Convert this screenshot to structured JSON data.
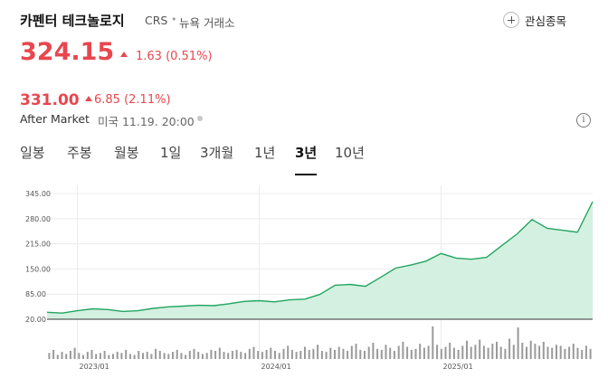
{
  "header": {
    "company_name": "카펜터 테크놀로지",
    "ticker": "CRS",
    "separator": "•",
    "exchange": "뉴욕 거래소",
    "watchlist_label": "관심종목"
  },
  "quote": {
    "price": "324.15",
    "change": "1.63 (0.51%)",
    "direction": "up",
    "color": "#e8474f"
  },
  "after_market": {
    "price": "331.00",
    "change": "6.85 (2.11%)",
    "label": "After Market",
    "time": "미국 11.19. 20:00",
    "info_icon": "i"
  },
  "tabs": [
    {
      "label": "일봉",
      "active": false
    },
    {
      "label": "주봉",
      "active": false
    },
    {
      "label": "월봉",
      "active": false
    },
    {
      "label": "1일",
      "active": false
    },
    {
      "label": "3개월",
      "active": false
    },
    {
      "label": "1년",
      "active": false
    },
    {
      "label": "3년",
      "active": true
    },
    {
      "label": "10년",
      "active": false
    }
  ],
  "chart_data": {
    "type": "area",
    "line_color": "#22a562",
    "fill_color": "#d4f0e0",
    "yticks": [
      "345.00",
      "280.00",
      "215.00",
      "150.00",
      "85.00",
      "20.00"
    ],
    "ytick_values": [
      345,
      280,
      215,
      150,
      85,
      20
    ],
    "ylim": [
      20,
      345
    ],
    "xticks": [
      "2023/01",
      "2024/01",
      "2025/01"
    ],
    "xtick_values": [
      "2023-01",
      "2024-01",
      "2025-01"
    ],
    "x_range": [
      "2022-11",
      "2025-11"
    ],
    "grid": true,
    "series": [
      {
        "x": [
          "2022-11",
          "2022-12",
          "2023-01",
          "2023-02",
          "2023-03",
          "2023-04",
          "2023-05",
          "2023-06",
          "2023-07",
          "2023-08",
          "2023-09",
          "2023-10",
          "2023-11",
          "2023-12",
          "2024-01",
          "2024-02",
          "2024-03",
          "2024-04",
          "2024-05",
          "2024-06",
          "2024-07",
          "2024-08",
          "2024-09",
          "2024-10",
          "2024-11",
          "2024-12",
          "2025-01",
          "2025-02",
          "2025-03",
          "2025-04",
          "2025-05",
          "2025-06",
          "2025-07",
          "2025-08",
          "2025-09",
          "2025-10",
          "2025-11"
        ],
        "values": [
          38,
          36,
          42,
          47,
          45,
          40,
          42,
          48,
          52,
          54,
          56,
          55,
          60,
          66,
          68,
          65,
          70,
          72,
          84,
          108,
          110,
          105,
          128,
          152,
          160,
          170,
          190,
          178,
          175,
          180,
          210,
          240,
          278,
          255,
          250,
          245,
          324
        ]
      }
    ],
    "volume": [
      6,
      9,
      4,
      7,
      5,
      8,
      11,
      6,
      4,
      7,
      9,
      5,
      6,
      8,
      4,
      5,
      7,
      6,
      9,
      5,
      4,
      8,
      6,
      7,
      5,
      10,
      8,
      6,
      5,
      7,
      9,
      6,
      4,
      8,
      10,
      7,
      5,
      6,
      9,
      8,
      11,
      7,
      6,
      8,
      9,
      7,
      6,
      10,
      12,
      8,
      7,
      9,
      11,
      8,
      6,
      10,
      13,
      9,
      7,
      8,
      12,
      9,
      10,
      14,
      8,
      7,
      11,
      9,
      12,
      10,
      8,
      13,
      15,
      9,
      8,
      12,
      16,
      10,
      9,
      14,
      11,
      8,
      13,
      17,
      12,
      9,
      10,
      15,
      11,
      13,
      32,
      14,
      10,
      12,
      16,
      11,
      9,
      13,
      18,
      12,
      14,
      19,
      13,
      11,
      15,
      17,
      12,
      10,
      20,
      14,
      31,
      16,
      12,
      18,
      15,
      13,
      17,
      12,
      11,
      14,
      13,
      10,
      12,
      15,
      11,
      9,
      13,
      10
    ]
  }
}
